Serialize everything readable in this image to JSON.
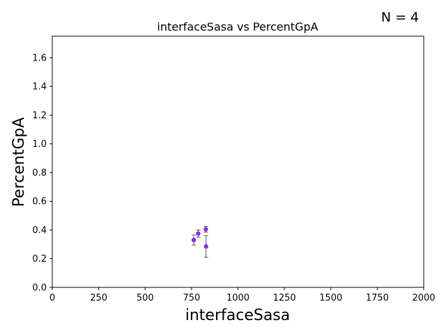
{
  "chart_data": {
    "type": "scatter",
    "title": "interfaceSasa vs PercentGpA",
    "annotation": "N = 4",
    "xlabel": "interfaceSasa",
    "ylabel": "PercentGpA",
    "xlim": [
      0,
      2000
    ],
    "ylim": [
      0,
      1.75
    ],
    "xticks": [
      0,
      250,
      500,
      750,
      1000,
      1250,
      1500,
      1750,
      2000
    ],
    "yticks": [
      0.0,
      0.2,
      0.4,
      0.6,
      0.8,
      1.0,
      1.2,
      1.4,
      1.6
    ],
    "xtick_labels": [
      "0",
      "250",
      "500",
      "750",
      "1000",
      "1250",
      "1500",
      "1750",
      "2000"
    ],
    "ytick_labels": [
      "0.0",
      "0.2",
      "0.4",
      "0.6",
      "0.8",
      "1.0",
      "1.2",
      "1.4",
      "1.6"
    ],
    "grid": false,
    "points": [
      {
        "x": 762,
        "y": 0.33,
        "yerr": 0.035
      },
      {
        "x": 786,
        "y": 0.375,
        "yerr": 0.025
      },
      {
        "x": 827,
        "y": 0.405,
        "yerr": 0.02
      },
      {
        "x": 828,
        "y": 0.285,
        "yerr": 0.075
      }
    ],
    "marker_color": "#8a2be2",
    "errorbar_color": "#555555"
  }
}
